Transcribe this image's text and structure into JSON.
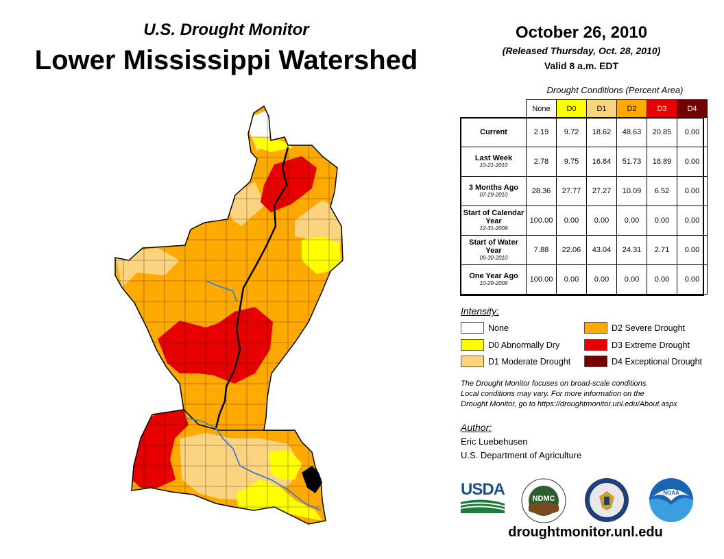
{
  "header": {
    "subtitle": "U.S. Drought Monitor",
    "title": "Lower Mississippi Watershed",
    "date": "October 26, 2010",
    "released": "(Released Thursday, Oct. 28, 2010)",
    "valid": "Valid 8 a.m. EDT"
  },
  "table": {
    "caption": "Drought Conditions (Percent Area)",
    "columns": [
      "None",
      "D0",
      "D1",
      "D2",
      "D3",
      "D4"
    ],
    "rows": [
      {
        "label": "Current",
        "date": "",
        "values": [
          "2.19",
          "9.72",
          "18.62",
          "48.63",
          "20.85",
          "0.00"
        ]
      },
      {
        "label": "Last Week",
        "date": "10-21-2010",
        "values": [
          "2.78",
          "9.75",
          "16.84",
          "51.73",
          "18.89",
          "0.00"
        ]
      },
      {
        "label": "3 Months Ago",
        "date": "07-29-2010",
        "values": [
          "28.36",
          "27.77",
          "27.27",
          "10.09",
          "6.52",
          "0.00"
        ]
      },
      {
        "label": "Start of Calendar Year",
        "date": "12-31-2009",
        "values": [
          "100.00",
          "0.00",
          "0.00",
          "0.00",
          "0.00",
          "0.00"
        ]
      },
      {
        "label": "Start of Water Year",
        "date": "09-30-2010",
        "values": [
          "7.88",
          "22.06",
          "43.04",
          "24.31",
          "2.71",
          "0.00"
        ]
      },
      {
        "label": "One Year Ago",
        "date": "10-29-2009",
        "values": [
          "100.00",
          "0.00",
          "0.00",
          "0.00",
          "0.00",
          "0.00"
        ]
      }
    ]
  },
  "legend": {
    "title": "Intensity:",
    "items": [
      {
        "label": "None",
        "color": "#ffffff"
      },
      {
        "label": "D0 Abnormally Dry",
        "color": "#ffff00"
      },
      {
        "label": "D1 Moderate Drought",
        "color": "#fcd37f"
      },
      {
        "label": "D2 Severe Drought",
        "color": "#ffaa00"
      },
      {
        "label": "D3 Extreme Drought",
        "color": "#e60000"
      },
      {
        "label": "D4 Exceptional Drought",
        "color": "#730000"
      }
    ]
  },
  "note": {
    "line1": "The Drought Monitor focuses on broad-scale conditions.",
    "line2": "Local conditions may vary. For more information on the",
    "line3": "Drought Monitor, go to https://droughtmonitor.unl.edu/About.aspx"
  },
  "author": {
    "title": "Author:",
    "name": "Eric Luebehusen",
    "org": "U.S. Department of Agriculture"
  },
  "logos": {
    "usda": "USDA",
    "ndmc": "NDMC",
    "noaa": "NOAA"
  },
  "website": "droughtmonitor.unl.edu",
  "map": {
    "river_color": "#3a7fd5",
    "icons": [
      "watershed-outline",
      "mississippi-river"
    ]
  }
}
